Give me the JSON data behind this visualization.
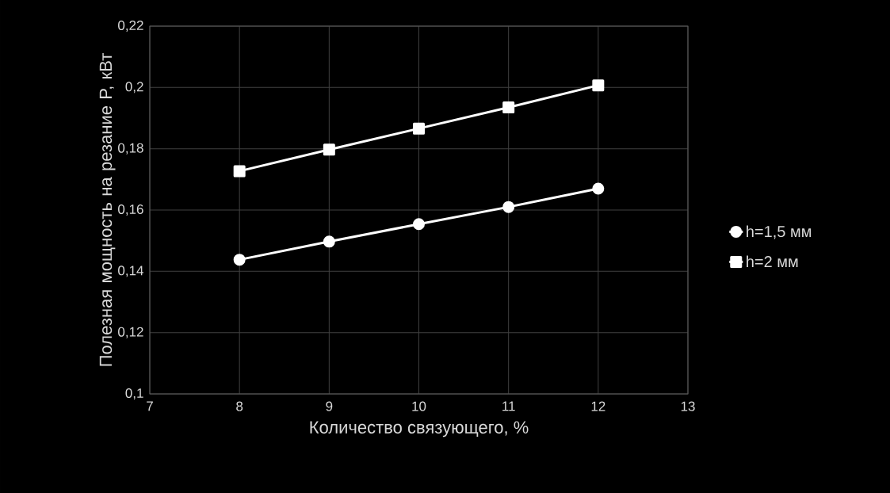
{
  "chart_data": {
    "type": "line",
    "xlabel": "Количество связующего, %",
    "ylabel": "Полезная мощность на резание P, кВт",
    "x": [
      8,
      9,
      10,
      11,
      12
    ],
    "series": [
      {
        "name": "h=1,5 мм",
        "color": "#ffffff",
        "marker": "circle",
        "values": [
          0.1438,
          0.1497,
          0.1554,
          0.161,
          0.167
        ]
      },
      {
        "name": "h=2 мм",
        "color": "#ffffff",
        "marker": "square",
        "values": [
          0.1727,
          0.1797,
          0.1866,
          0.1935,
          0.2007
        ]
      }
    ],
    "xlim": [
      7,
      13
    ],
    "xticks": [
      7,
      8,
      9,
      10,
      11,
      12,
      13
    ],
    "ylim": [
      0.1,
      0.22
    ],
    "yticks": [
      {
        "value": 0.1,
        "label": "0,1"
      },
      {
        "value": 0.12,
        "label": "0,12"
      },
      {
        "value": 0.14,
        "label": "0,14"
      },
      {
        "value": 0.16,
        "label": "0,16"
      },
      {
        "value": 0.18,
        "label": "0,18"
      },
      {
        "value": 0.2,
        "label": "0,2"
      },
      {
        "value": 0.22,
        "label": "0,22"
      }
    ],
    "grid": true,
    "legend": "right",
    "line_style": "solid"
  }
}
